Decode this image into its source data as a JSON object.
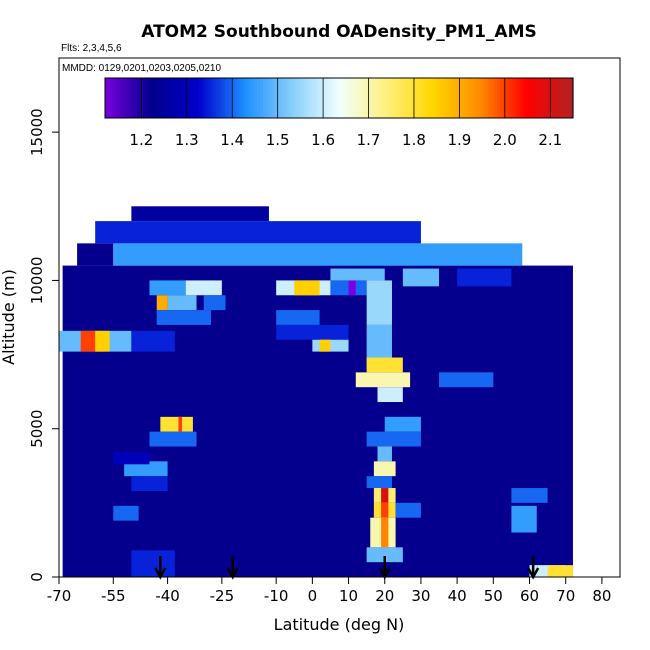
{
  "chart_data": {
    "type": "heatmap",
    "title": "ATOM2 Southbound OADensity_PM1_AMS",
    "flights_note": "Flts: 2,3,4,5,6",
    "dates_note": "MMDD: 0129,0201,0203,0205,0210",
    "xlabel": "Latitude (deg N)",
    "ylabel": "Altitude (m)",
    "xlim": [
      -70,
      85
    ],
    "ylim": [
      0,
      17500
    ],
    "x_ticks": [
      -70,
      -55,
      -40,
      -25,
      -10,
      0,
      10,
      20,
      30,
      40,
      50,
      60,
      70,
      80
    ],
    "y_ticks": [
      0,
      5000,
      10000,
      15000
    ],
    "colorbar": {
      "range": [
        1.12,
        2.15
      ],
      "ticks": [
        1.2,
        1.3,
        1.4,
        1.5,
        1.6,
        1.7,
        1.8,
        1.9,
        2.0,
        2.1
      ],
      "stops": [
        "#7a00e0",
        "#00008b",
        "#0000cd",
        "#1e90ff",
        "#87cefa",
        "#f0ffff",
        "#fff080",
        "#ffd700",
        "#ff8c00",
        "#ff0000",
        "#b22222"
      ]
    },
    "background": {
      "value": 1.22,
      "lat_range": [
        -69,
        72
      ],
      "alt_range": [
        0,
        10500
      ]
    },
    "upper_bands": [
      {
        "lat": [
          -65,
          -55
        ],
        "alt": [
          10500,
          11250
        ],
        "value": 1.22
      },
      {
        "lat": [
          -55,
          58
        ],
        "alt": [
          10500,
          11250
        ],
        "value": 1.45
      },
      {
        "lat": [
          -60,
          30
        ],
        "alt": [
          11250,
          12000
        ],
        "value": 1.35
      },
      {
        "lat": [
          -50,
          -12
        ],
        "alt": [
          12000,
          12500
        ],
        "value": 1.25
      }
    ],
    "cells": [
      {
        "lat": [
          -70,
          -50
        ],
        "alt": [
          7600,
          8300
        ],
        "value": 1.5
      },
      {
        "lat": [
          -64,
          -58
        ],
        "alt": [
          7600,
          8300
        ],
        "value": 2.0
      },
      {
        "lat": [
          -60,
          -56
        ],
        "alt": [
          7600,
          8300
        ],
        "value": 1.85
      },
      {
        "lat": [
          -50,
          -38
        ],
        "alt": [
          7600,
          8300
        ],
        "value": 1.35
      },
      {
        "lat": [
          -45,
          -35
        ],
        "alt": [
          9500,
          10000
        ],
        "value": 1.45
      },
      {
        "lat": [
          -40,
          -32
        ],
        "alt": [
          9000,
          9500
        ],
        "value": 1.5
      },
      {
        "lat": [
          -43,
          -40
        ],
        "alt": [
          9000,
          9500
        ],
        "value": 1.9
      },
      {
        "lat": [
          -35,
          -25
        ],
        "alt": [
          9500,
          10000
        ],
        "value": 1.6
      },
      {
        "lat": [
          -30,
          -24
        ],
        "alt": [
          9000,
          9500
        ],
        "value": 1.4
      },
      {
        "lat": [
          -43,
          -28
        ],
        "alt": [
          8500,
          9000
        ],
        "value": 1.4
      },
      {
        "lat": [
          -42,
          -33
        ],
        "alt": [
          4900,
          5400
        ],
        "value": 1.8
      },
      {
        "lat": [
          -37,
          -36
        ],
        "alt": [
          4900,
          5400
        ],
        "value": 2.0
      },
      {
        "lat": [
          -45,
          -32
        ],
        "alt": [
          4400,
          4900
        ],
        "value": 1.4
      },
      {
        "lat": [
          -52,
          -40
        ],
        "alt": [
          3400,
          3900
        ],
        "value": 1.45
      },
      {
        "lat": [
          -50,
          -40
        ],
        "alt": [
          2900,
          3400
        ],
        "value": 1.35
      },
      {
        "lat": [
          -55,
          -45
        ],
        "alt": [
          3800,
          4200
        ],
        "value": 1.3
      },
      {
        "lat": [
          -55,
          -48
        ],
        "alt": [
          1900,
          2400
        ],
        "value": 1.4
      },
      {
        "lat": [
          -50,
          -38
        ],
        "alt": [
          0,
          900
        ],
        "value": 1.35
      },
      {
        "lat": [
          -10,
          5
        ],
        "alt": [
          9500,
          10000
        ],
        "value": 1.6
      },
      {
        "lat": [
          -5,
          2
        ],
        "alt": [
          9500,
          10000
        ],
        "value": 1.85
      },
      {
        "lat": [
          5,
          15
        ],
        "alt": [
          9500,
          10000
        ],
        "value": 1.4
      },
      {
        "lat": [
          10,
          12
        ],
        "alt": [
          9500,
          10000
        ],
        "value": 1.12
      },
      {
        "lat": [
          5,
          20
        ],
        "alt": [
          10000,
          10400
        ],
        "value": 1.5
      },
      {
        "lat": [
          -10,
          2
        ],
        "alt": [
          8500,
          9000
        ],
        "value": 1.4
      },
      {
        "lat": [
          -10,
          10
        ],
        "alt": [
          8000,
          8500
        ],
        "value": 1.35
      },
      {
        "lat": [
          0,
          10
        ],
        "alt": [
          7600,
          8000
        ],
        "value": 1.55
      },
      {
        "lat": [
          2,
          5
        ],
        "alt": [
          7600,
          8000
        ],
        "value": 1.85
      },
      {
        "lat": [
          15,
          22
        ],
        "alt": [
          8500,
          10000
        ],
        "value": 1.55
      },
      {
        "lat": [
          15,
          22
        ],
        "alt": [
          7000,
          8500
        ],
        "value": 1.5
      },
      {
        "lat": [
          15,
          25
        ],
        "alt": [
          6900,
          7400
        ],
        "value": 1.8
      },
      {
        "lat": [
          12,
          27
        ],
        "alt": [
          6400,
          6900
        ],
        "value": 1.7
      },
      {
        "lat": [
          18,
          25
        ],
        "alt": [
          5900,
          6400
        ],
        "value": 1.6
      },
      {
        "lat": [
          35,
          50
        ],
        "alt": [
          6400,
          6900
        ],
        "value": 1.4
      },
      {
        "lat": [
          20,
          30
        ],
        "alt": [
          4900,
          5400
        ],
        "value": 1.45
      },
      {
        "lat": [
          15,
          30
        ],
        "alt": [
          4400,
          4900
        ],
        "value": 1.4
      },
      {
        "lat": [
          18,
          22
        ],
        "alt": [
          3900,
          4400
        ],
        "value": 1.5
      },
      {
        "lat": [
          17,
          23
        ],
        "alt": [
          3400,
          3900
        ],
        "value": 1.7
      },
      {
        "lat": [
          15,
          22
        ],
        "alt": [
          3000,
          3400
        ],
        "value": 1.4
      },
      {
        "lat": [
          17,
          23
        ],
        "alt": [
          2500,
          3000
        ],
        "value": 1.75
      },
      {
        "lat": [
          19,
          21
        ],
        "alt": [
          2500,
          3000
        ],
        "value": 2.1
      },
      {
        "lat": [
          17,
          23
        ],
        "alt": [
          2000,
          2500
        ],
        "value": 1.8
      },
      {
        "lat": [
          19,
          21
        ],
        "alt": [
          2000,
          2500
        ],
        "value": 2.0
      },
      {
        "lat": [
          16,
          23
        ],
        "alt": [
          1000,
          2000
        ],
        "value": 1.7
      },
      {
        "lat": [
          19,
          21
        ],
        "alt": [
          1000,
          2000
        ],
        "value": 1.95
      },
      {
        "lat": [
          15,
          25
        ],
        "alt": [
          500,
          1000
        ],
        "value": 1.5
      },
      {
        "lat": [
          23,
          30
        ],
        "alt": [
          2000,
          2500
        ],
        "value": 1.4
      },
      {
        "lat": [
          55,
          65
        ],
        "alt": [
          2500,
          3000
        ],
        "value": 1.4
      },
      {
        "lat": [
          55,
          62
        ],
        "alt": [
          1500,
          2400
        ],
        "value": 1.45
      },
      {
        "lat": [
          60,
          70
        ],
        "alt": [
          0,
          400
        ],
        "value": 1.6
      },
      {
        "lat": [
          65,
          72
        ],
        "alt": [
          0,
          400
        ],
        "value": 1.8
      },
      {
        "lat": [
          25,
          35
        ],
        "alt": [
          9800,
          10400
        ],
        "value": 1.5
      },
      {
        "lat": [
          40,
          55
        ],
        "alt": [
          9800,
          10400
        ],
        "value": 1.35
      }
    ],
    "arrows_lat": [
      -42,
      -22,
      20,
      61
    ]
  }
}
